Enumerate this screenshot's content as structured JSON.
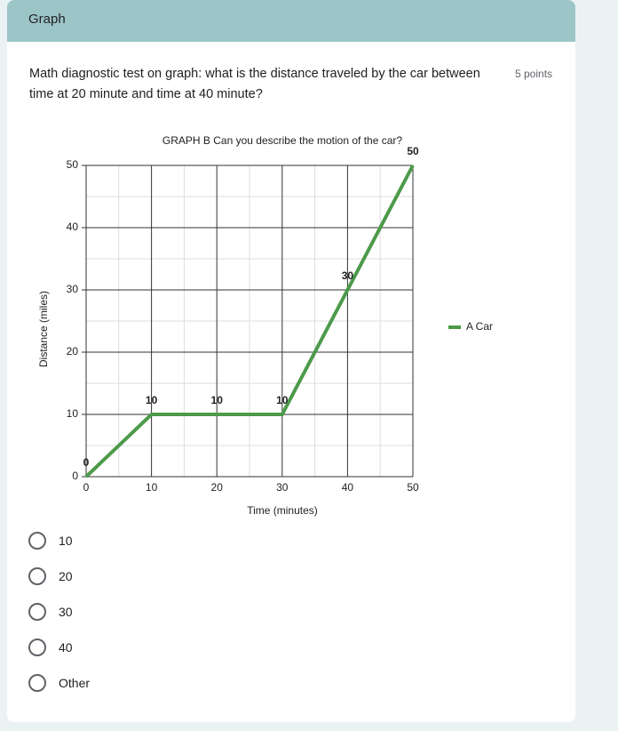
{
  "form": {
    "section_title": "Graph",
    "question": "Math diagnostic test on graph: what is the distance traveled by the car between time at 20 minute and time at 40 minute?",
    "points": "5 points",
    "options": [
      "10",
      "20",
      "30",
      "40",
      "Other"
    ]
  },
  "chart_data": {
    "type": "line",
    "title": "GRAPH B Can you describe the motion of the car?",
    "x_label": "Time (minutes)",
    "y_label": "Distance (miles)",
    "x": [
      0,
      10,
      20,
      30,
      40,
      50
    ],
    "series": [
      {
        "name": "A Car",
        "color": "#4c9a4a",
        "values": [
          0,
          10,
          10,
          10,
          30,
          50
        ]
      }
    ],
    "xlim": [
      0,
      50
    ],
    "ylim": [
      0,
      50
    ],
    "xticks": [
      0,
      10,
      20,
      30,
      40,
      50
    ],
    "yticks": [
      0,
      10,
      20,
      30,
      40,
      50
    ],
    "xminor": [
      5,
      15,
      25,
      35,
      45
    ],
    "yminor": [
      5,
      15,
      25,
      35,
      45
    ],
    "grid": true,
    "show_values": true,
    "legend": "right"
  }
}
